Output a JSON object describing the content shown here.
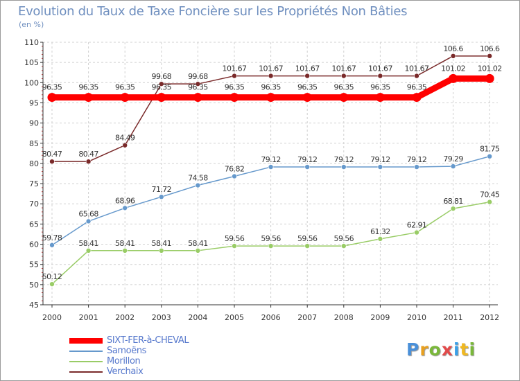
{
  "chart_data": {
    "type": "line",
    "title": "Evolution du Taux de Taxe Foncière sur les Propriétés Non Bâties",
    "ylabel": "(en %)",
    "xlabel": "",
    "ylim": [
      45,
      110
    ],
    "yticks": [
      45,
      50,
      55,
      60,
      65,
      70,
      75,
      80,
      85,
      90,
      95,
      100,
      105,
      110
    ],
    "x": [
      "2000",
      "2001",
      "2002",
      "2003",
      "2004",
      "2005",
      "2006",
      "2007",
      "2008",
      "2009",
      "2010",
      "2011",
      "2012"
    ],
    "grid": true,
    "legend_position": "bottom-left",
    "series": [
      {
        "name": "SIXT-FER-à-CHEVAL",
        "color": "#ff0000",
        "values": [
          96.35,
          96.35,
          96.35,
          96.35,
          96.35,
          96.35,
          96.35,
          96.35,
          96.35,
          96.35,
          96.35,
          101.02,
          101.02
        ],
        "labels": [
          "96.35",
          "96.35",
          "96.35",
          "96.35",
          "96.35",
          "96.35",
          "96.35",
          "96.35",
          "96.35",
          "96.35",
          "96.35",
          "101.02",
          "101.02"
        ]
      },
      {
        "name": "Samoëns",
        "color": "#6699cc",
        "values": [
          59.78,
          65.68,
          68.96,
          71.72,
          74.58,
          76.82,
          79.12,
          79.12,
          79.12,
          79.12,
          79.12,
          79.29,
          81.75
        ],
        "labels": [
          "59.78",
          "65.68",
          "68.96",
          "71.72",
          "74.58",
          "76.82",
          "79.12",
          "79.12",
          "79.12",
          "79.12",
          "79.12",
          "79.29",
          "81.75"
        ]
      },
      {
        "name": "Morillon",
        "color": "#99cc66",
        "values": [
          50.12,
          58.41,
          58.41,
          58.41,
          58.41,
          59.56,
          59.56,
          59.56,
          59.56,
          61.32,
          62.91,
          68.81,
          70.45
        ],
        "labels": [
          "50.12",
          "58.41",
          "58.41",
          "58.41",
          "58.41",
          "59.56",
          "59.56",
          "59.56",
          "59.56",
          "61.32",
          "62.91",
          "68.81",
          "70.45"
        ]
      },
      {
        "name": "Verchaix",
        "color": "#7a2a2a",
        "values": [
          80.47,
          80.47,
          84.49,
          99.68,
          99.68,
          101.67,
          101.67,
          101.67,
          101.67,
          101.67,
          101.67,
          106.6,
          106.6
        ],
        "labels": [
          "80.47",
          "80.47",
          "84.49",
          "99.68",
          "99.68",
          "101.67",
          "101.67",
          "101.67",
          "101.67",
          "101.67",
          "101.67",
          "106.6",
          "106.6"
        ]
      }
    ]
  },
  "branding": {
    "logo": [
      "P",
      "r",
      "o",
      "x",
      "i",
      "t",
      "i"
    ]
  }
}
